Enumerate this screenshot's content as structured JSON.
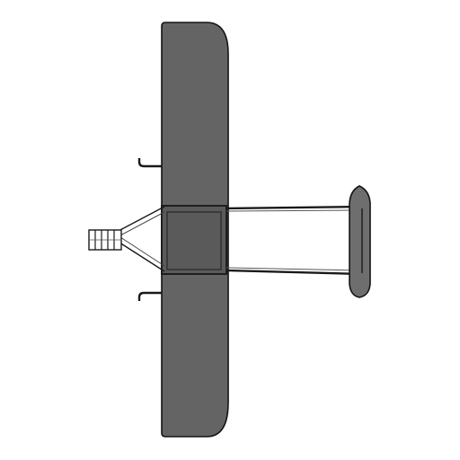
{
  "sprite": {
    "subject": "biplane-top-view",
    "colors": {
      "background": "#ffffff",
      "wing_fill": "#646464",
      "tail_fill": "#6e6e6e",
      "outline": "#141414",
      "frame": "#2a2a2a",
      "center_fill": "#5a5a5a"
    }
  }
}
